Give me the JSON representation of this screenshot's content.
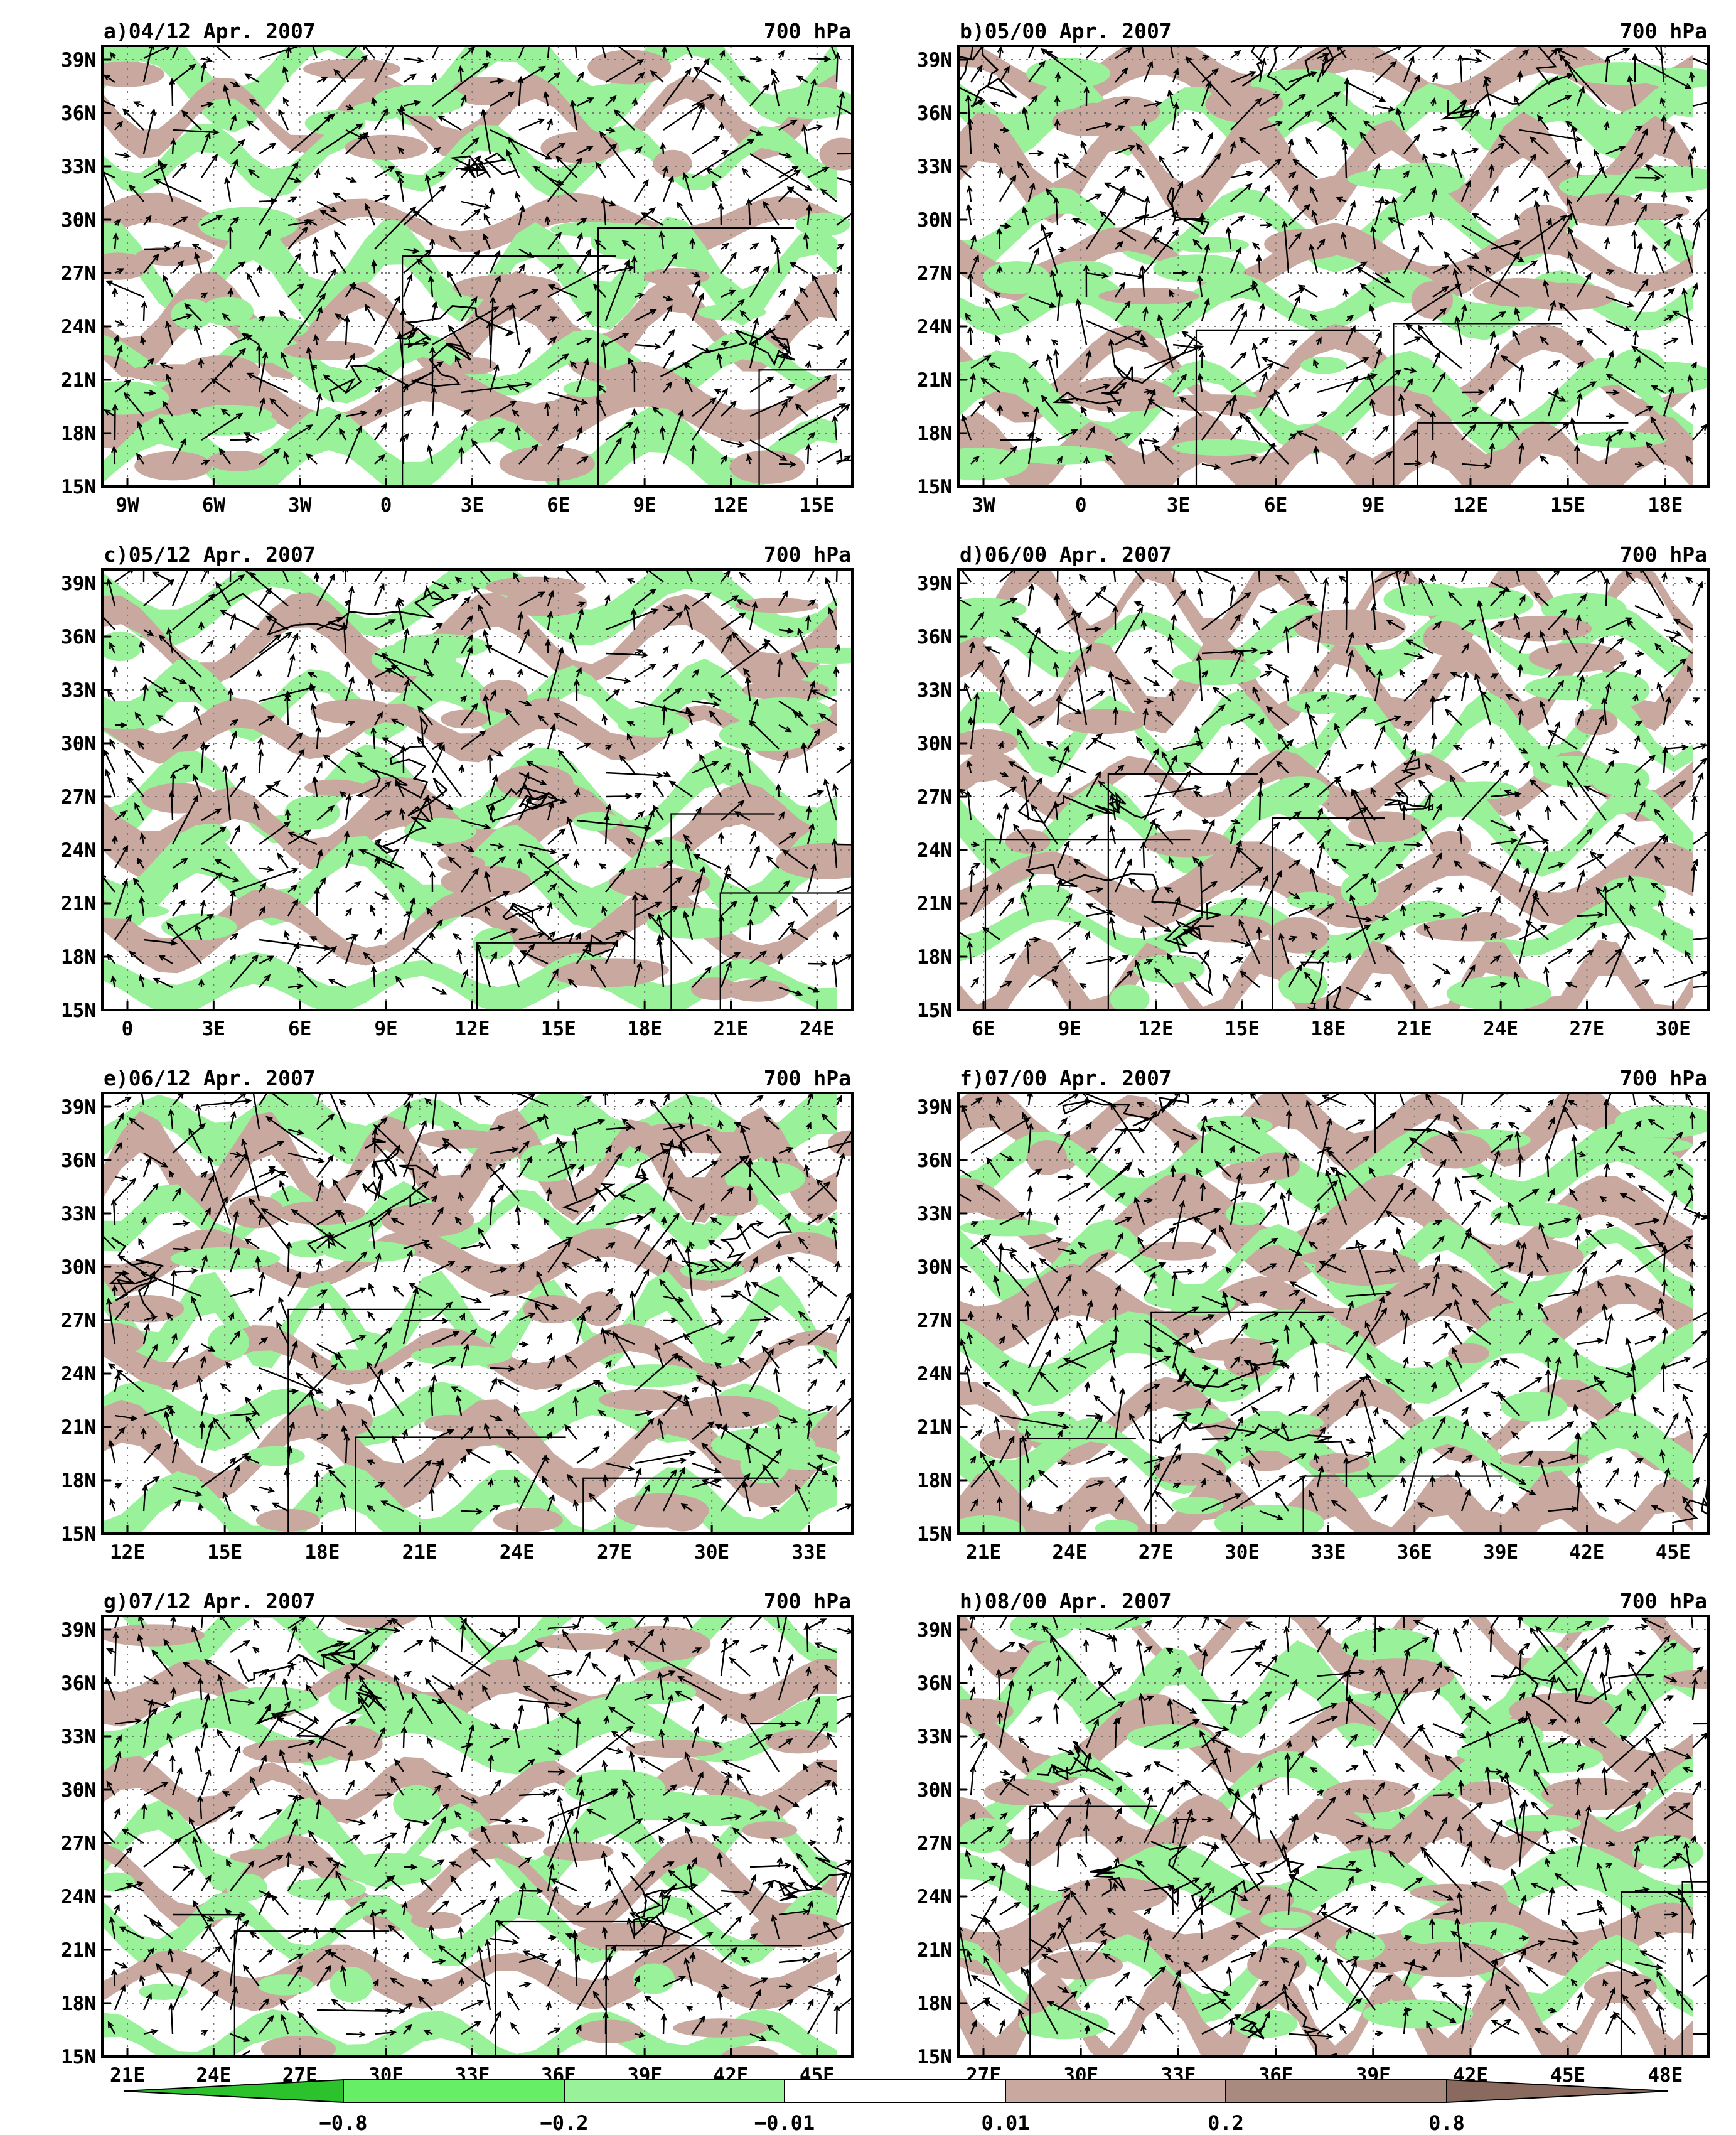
{
  "colors": {
    "green_dark": "#2cc22c",
    "green_mid": "#66ee66",
    "green_light": "#99f299",
    "white": "#ffffff",
    "brown_light": "#c9a99f",
    "brown_mid": "#a98a7f",
    "brown_dark": "#8a6a5e",
    "vector": "#000000",
    "border": "#000000"
  },
  "panels": [
    {
      "id": "a",
      "title": "a)04/12 Apr. 2007",
      "level": "700 hPa",
      "yticks": [
        "39N",
        "36N",
        "33N",
        "30N",
        "27N",
        "24N",
        "21N",
        "18N",
        "15N"
      ],
      "xticks": [
        "9W",
        "6W",
        "3W",
        "0",
        "3E",
        "6E",
        "9E",
        "12E",
        "15E"
      ]
    },
    {
      "id": "b",
      "title": "b)05/00 Apr. 2007",
      "level": "700 hPa",
      "yticks": [
        "39N",
        "36N",
        "33N",
        "30N",
        "27N",
        "24N",
        "21N",
        "18N",
        "15N"
      ],
      "xticks": [
        "3W",
        "0",
        "3E",
        "6E",
        "9E",
        "12E",
        "15E",
        "18E"
      ]
    },
    {
      "id": "c",
      "title": "c)05/12 Apr. 2007",
      "level": "700 hPa",
      "yticks": [
        "39N",
        "36N",
        "33N",
        "30N",
        "27N",
        "24N",
        "21N",
        "18N",
        "15N"
      ],
      "xticks": [
        "0",
        "3E",
        "6E",
        "9E",
        "12E",
        "15E",
        "18E",
        "21E",
        "24E"
      ]
    },
    {
      "id": "d",
      "title": "d)06/00 Apr. 2007",
      "level": "700 hPa",
      "yticks": [
        "39N",
        "36N",
        "33N",
        "30N",
        "27N",
        "24N",
        "21N",
        "18N",
        "15N"
      ],
      "xticks": [
        "6E",
        "9E",
        "12E",
        "15E",
        "18E",
        "21E",
        "24E",
        "27E",
        "30E"
      ]
    },
    {
      "id": "e",
      "title": "e)06/12 Apr. 2007",
      "level": "700 hPa",
      "yticks": [
        "39N",
        "36N",
        "33N",
        "30N",
        "27N",
        "24N",
        "21N",
        "18N",
        "15N"
      ],
      "xticks": [
        "12E",
        "15E",
        "18E",
        "21E",
        "24E",
        "27E",
        "30E",
        "33E"
      ]
    },
    {
      "id": "f",
      "title": "f)07/00 Apr. 2007",
      "level": "700 hPa",
      "yticks": [
        "39N",
        "36N",
        "33N",
        "30N",
        "27N",
        "24N",
        "21N",
        "18N",
        "15N"
      ],
      "xticks": [
        "21E",
        "24E",
        "27E",
        "30E",
        "33E",
        "36E",
        "39E",
        "42E",
        "45E"
      ]
    },
    {
      "id": "g",
      "title": "g)07/12 Apr. 2007",
      "level": "700 hPa",
      "yticks": [
        "39N",
        "36N",
        "33N",
        "30N",
        "27N",
        "24N",
        "21N",
        "18N",
        "15N"
      ],
      "xticks": [
        "21E",
        "24E",
        "27E",
        "30E",
        "33E",
        "36E",
        "39E",
        "42E",
        "45E"
      ]
    },
    {
      "id": "h",
      "title": "h)08/00 Apr. 2007",
      "level": "700 hPa",
      "yticks": [
        "39N",
        "36N",
        "33N",
        "30N",
        "27N",
        "24N",
        "21N",
        "18N",
        "15N"
      ],
      "xticks": [
        "27E",
        "30E",
        "33E",
        "36E",
        "39E",
        "42E",
        "45E",
        "48E"
      ]
    }
  ],
  "colorbar": {
    "labels": [
      "−0.8",
      "−0.2",
      "−0.01",
      "0.01",
      "0.2",
      "0.8"
    ]
  }
}
